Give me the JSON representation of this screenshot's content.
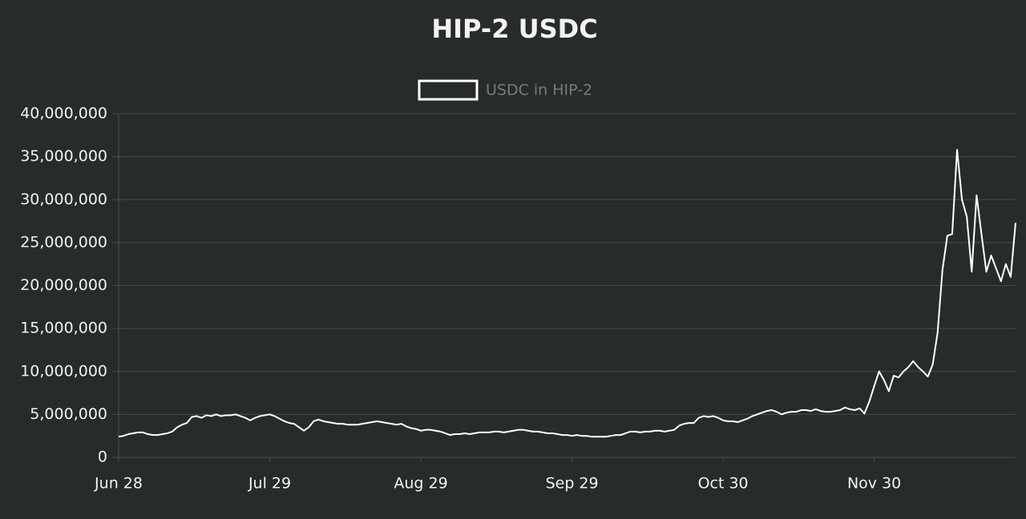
{
  "chart_data": {
    "type": "line",
    "title": "HIP-2 USDC",
    "categories": [
      "Jun 28",
      null,
      null,
      null,
      null,
      null,
      null,
      null,
      null,
      null,
      null,
      null,
      null,
      null,
      null,
      null,
      null,
      null,
      null,
      null,
      null,
      null,
      null,
      null,
      null,
      null,
      null,
      null,
      null,
      null,
      null,
      "Jul 29",
      null,
      null,
      null,
      null,
      null,
      null,
      null,
      null,
      null,
      null,
      null,
      null,
      null,
      null,
      null,
      null,
      null,
      null,
      null,
      null,
      null,
      null,
      null,
      null,
      null,
      null,
      null,
      null,
      null,
      null,
      "Aug 29",
      null,
      null,
      null,
      null,
      null,
      null,
      null,
      null,
      null,
      null,
      null,
      null,
      null,
      null,
      null,
      null,
      null,
      null,
      null,
      null,
      null,
      null,
      null,
      null,
      null,
      null,
      null,
      null,
      null,
      null,
      "Sep 29",
      null,
      null,
      null,
      null,
      null,
      null,
      null,
      null,
      null,
      null,
      null,
      null,
      null,
      null,
      null,
      null,
      null,
      null,
      null,
      null,
      null,
      null,
      null,
      null,
      null,
      null,
      null,
      null,
      null,
      null,
      "Oct 30",
      null,
      null,
      null,
      null,
      null,
      null,
      null,
      null,
      null,
      null,
      null,
      null,
      null,
      null,
      null,
      null,
      null,
      null,
      null,
      null,
      null,
      null,
      null,
      null,
      null,
      null,
      null,
      null,
      null,
      null,
      "Nov 30",
      null,
      null,
      null,
      null,
      null,
      null,
      null,
      null,
      null,
      null,
      null,
      null,
      null,
      null,
      null,
      null,
      null,
      null,
      null,
      null,
      null,
      null,
      null,
      null,
      null,
      null,
      null,
      null,
      null
    ],
    "series": [
      {
        "name": "USDC in HIP-2",
        "color": "#ffffff",
        "values": [
          2400000,
          2500000,
          2700000,
          2800000,
          2900000,
          2900000,
          2700000,
          2600000,
          2600000,
          2700000,
          2800000,
          3000000,
          3500000,
          3800000,
          4000000,
          4700000,
          4800000,
          4600000,
          4900000,
          4800000,
          5000000,
          4800000,
          4900000,
          4900000,
          5000000,
          4800000,
          4600000,
          4300000,
          4600000,
          4800000,
          4900000,
          5000000,
          4800000,
          4500000,
          4200000,
          4000000,
          3900000,
          3500000,
          3100000,
          3500000,
          4200000,
          4400000,
          4200000,
          4100000,
          4000000,
          3900000,
          3900000,
          3800000,
          3800000,
          3800000,
          3900000,
          4000000,
          4100000,
          4200000,
          4100000,
          4000000,
          3900000,
          3800000,
          3900000,
          3600000,
          3400000,
          3300000,
          3100000,
          3200000,
          3200000,
          3100000,
          3000000,
          2800000,
          2600000,
          2700000,
          2700000,
          2800000,
          2700000,
          2800000,
          2900000,
          2900000,
          2900000,
          3000000,
          3000000,
          2900000,
          3000000,
          3100000,
          3200000,
          3200000,
          3100000,
          3000000,
          3000000,
          2900000,
          2800000,
          2800000,
          2700000,
          2600000,
          2600000,
          2500000,
          2600000,
          2500000,
          2500000,
          2400000,
          2400000,
          2400000,
          2400000,
          2500000,
          2600000,
          2600000,
          2800000,
          3000000,
          3000000,
          2900000,
          3000000,
          3000000,
          3100000,
          3100000,
          3000000,
          3100000,
          3200000,
          3700000,
          3900000,
          4000000,
          4000000,
          4600000,
          4800000,
          4700000,
          4800000,
          4600000,
          4300000,
          4200000,
          4200000,
          4100000,
          4300000,
          4500000,
          4800000,
          5000000,
          5200000,
          5400000,
          5500000,
          5300000,
          5000000,
          5200000,
          5300000,
          5300000,
          5500000,
          5500000,
          5400000,
          5600000,
          5400000,
          5300000,
          5300000,
          5400000,
          5500000,
          5800000,
          5600000,
          5500000,
          5700000,
          5100000,
          6500000,
          8300000,
          10000000,
          9000000,
          7700000,
          9500000,
          9300000,
          10000000,
          10500000,
          11200000,
          10500000,
          10000000,
          9400000,
          10800000,
          14500000,
          21800000,
          25800000,
          26000000,
          35800000,
          30000000,
          28000000,
          21600000,
          30500000,
          26000000,
          21600000,
          23500000,
          22000000,
          20500000,
          22500000,
          21000000,
          27300000
        ]
      }
    ],
    "ylim": [
      0,
      40000000
    ],
    "yticks": [
      0,
      {
        "value": 5000000,
        "label": "5,000,000"
      },
      {
        "value": 10000000,
        "label": "10,000,000"
      },
      {
        "value": 15000000,
        "label": "15,000,000"
      },
      {
        "value": 20000000,
        "label": "20,000,000"
      },
      {
        "value": 25000000,
        "label": "25,000,000"
      },
      {
        "value": 30000000,
        "label": "30,000,000"
      },
      {
        "value": 35000000,
        "label": "35,000,000"
      },
      {
        "value": 40000000,
        "label": "40,000,000"
      }
    ],
    "grid": true,
    "legend": "top"
  }
}
